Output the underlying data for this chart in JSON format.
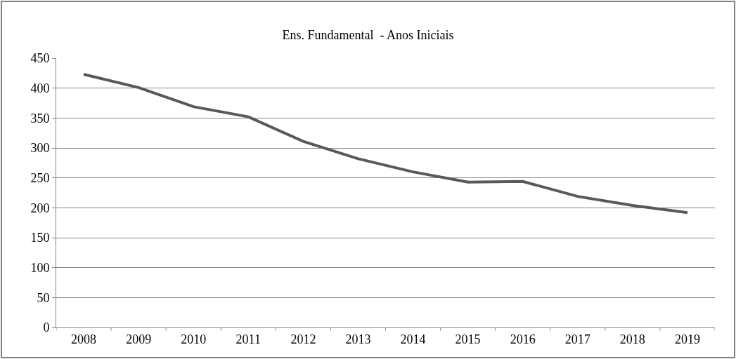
{
  "chart_data": {
    "type": "line",
    "title": "Ens. Fundamental  - Anos Iniciais",
    "categories": [
      "2008",
      "2009",
      "2010",
      "2011",
      "2012",
      "2013",
      "2014",
      "2015",
      "2016",
      "2017",
      "2018",
      "2019"
    ],
    "series": [
      {
        "color": "#595959",
        "values": [
          423,
          401,
          369,
          352,
          311,
          282,
          260,
          243,
          244,
          219,
          204,
          192
        ]
      }
    ],
    "ylim": [
      0,
      450
    ],
    "yticks": [
      0,
      50,
      100,
      150,
      200,
      250,
      300,
      350,
      400,
      450
    ],
    "grid": "y",
    "marker": "none",
    "line_style": "solid"
  }
}
